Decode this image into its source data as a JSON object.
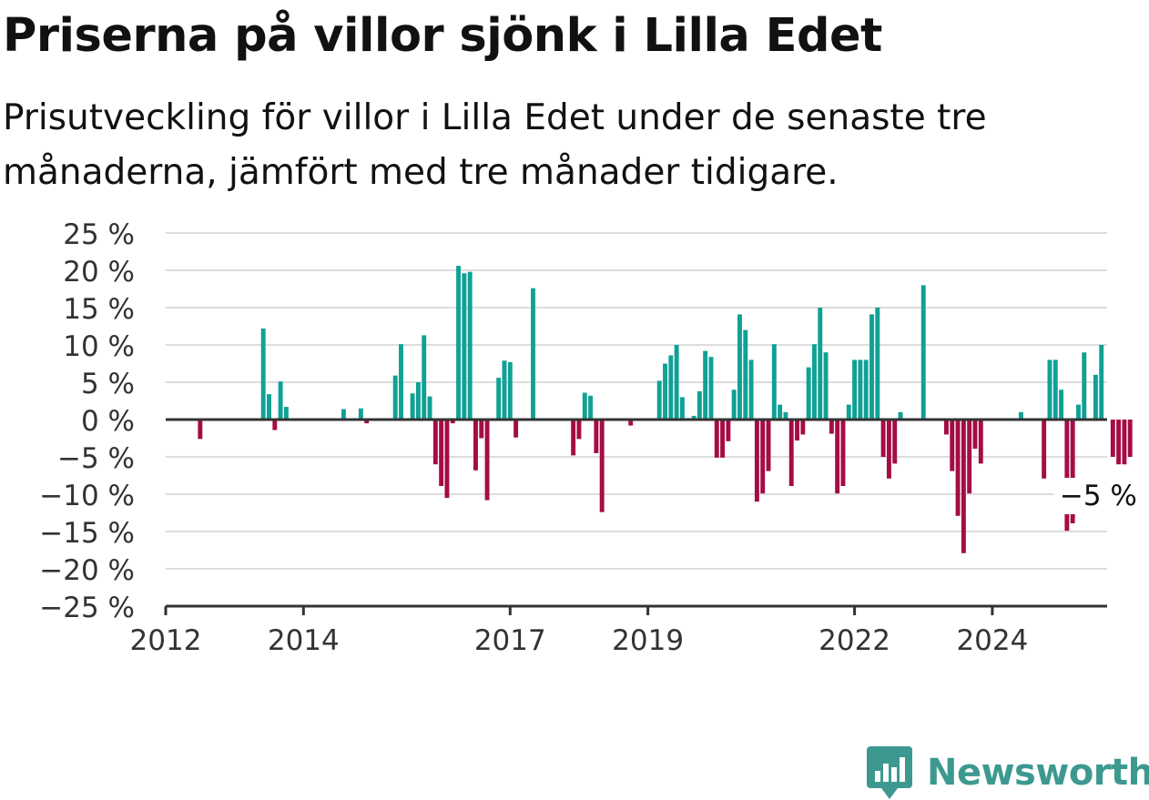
{
  "header": {
    "title": "Priserna på villor sjönk i Lilla Edet",
    "subtitle": "Prisutveckling för villor i Lilla Edet under de senaste tre månaderna, jämfört med tre månader tidigare."
  },
  "brand": {
    "name": "Newsworthy",
    "icon": "newsworthy-logo-icon",
    "color": "#3d9990"
  },
  "chart_data": {
    "type": "bar",
    "x_start": "2012-01",
    "x_step": "month",
    "xlim": [
      "2012-01",
      "2025-09"
    ],
    "ylim": [
      -25,
      25
    ],
    "yticks": [
      25,
      20,
      15,
      10,
      5,
      0,
      -5,
      -10,
      -15,
      -20,
      -25
    ],
    "ytick_labels": [
      "25 %",
      "20 %",
      "15 %",
      "10 %",
      "5 %",
      "0 %",
      "−5 %",
      "−10 %",
      "−15 %",
      "−20 %",
      "−25 %"
    ],
    "xticks": [
      "2012-01",
      "2014-01",
      "2017-01",
      "2019-01",
      "2022-01",
      "2024-01"
    ],
    "xtick_labels": [
      "2012",
      "2014",
      "2017",
      "2019",
      "2022",
      "2024"
    ],
    "grid": true,
    "colors": {
      "positive": "#10a195",
      "negative": "#a50c45",
      "grid": "#dddddd",
      "axis": "#333333"
    },
    "annotation": {
      "text": "−5 %",
      "x": "2025-02",
      "y": -5
    },
    "values": [
      0,
      0,
      0,
      0,
      0,
      0,
      -2.6,
      0,
      0,
      0,
      0,
      0,
      0,
      0,
      0,
      0,
      0,
      12.2,
      3.4,
      -1.4,
      5.1,
      1.7,
      0,
      0,
      0,
      0,
      0,
      0,
      0,
      0,
      0,
      1.4,
      0,
      0,
      1.5,
      -0.5,
      0,
      0,
      0,
      0,
      5.9,
      10.1,
      0,
      3.5,
      5.0,
      11.3,
      3.1,
      -6.0,
      -8.9,
      -10.5,
      -0.5,
      20.6,
      19.6,
      19.8,
      -6.8,
      -2.5,
      -10.8,
      0,
      5.6,
      7.9,
      7.7,
      -2.4,
      0,
      0,
      17.6,
      0,
      0,
      0,
      0,
      0,
      0,
      -4.8,
      -2.6,
      3.6,
      3.2,
      -4.5,
      -12.4,
      0,
      0,
      0,
      0,
      -0.8,
      0,
      0,
      0,
      0,
      5.2,
      7.5,
      8.6,
      10.0,
      3.0,
      0.2,
      0.5,
      3.8,
      9.2,
      8.4,
      -5.1,
      -5.1,
      -2.9,
      4.0,
      14.1,
      12.0,
      8.0,
      -11.0,
      -9.9,
      -6.9,
      10.1,
      2.0,
      1.0,
      -8.9,
      -2.8,
      -2.0,
      7.0,
      10.1,
      15.0,
      9.0,
      -1.9,
      -9.9,
      -8.9,
      2.0,
      8.0,
      8.0,
      8.0,
      14.1,
      15.0,
      -5.0,
      -7.9,
      -5.9,
      1.0,
      0,
      0,
      0,
      18.0,
      0,
      0,
      0,
      -2.0,
      -6.9,
      -12.9,
      -17.9,
      -9.9,
      -3.9,
      -5.9,
      0,
      0,
      0,
      0,
      0,
      0,
      1.0,
      0,
      0,
      0,
      -7.9,
      8.0,
      8.0,
      4.0,
      -14.9,
      -13.9,
      2.0,
      9.0,
      0,
      6.0,
      10.0,
      0,
      -5.0,
      -6.0,
      -6.0,
      -5.0
    ]
  }
}
